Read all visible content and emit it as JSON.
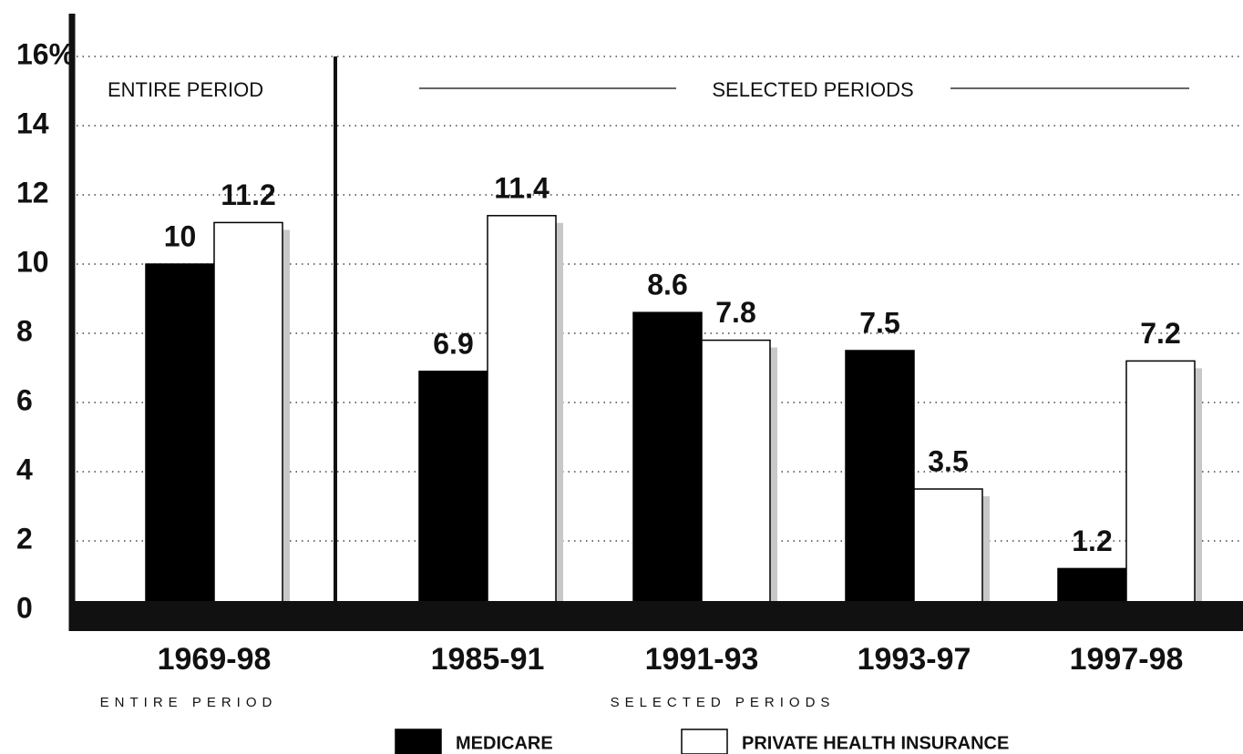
{
  "chart_data": {
    "type": "bar",
    "categories": [
      "1969-98",
      "1985-91",
      "1991-93",
      "1993-97",
      "1997-98"
    ],
    "series": [
      {
        "name": "MEDICARE",
        "color": "#000000",
        "values": [
          10,
          6.9,
          8.6,
          7.5,
          1.2
        ]
      },
      {
        "name": "PRIVATE HEALTH INSURANCE",
        "color": "#ffffff",
        "values": [
          11.2,
          11.4,
          7.8,
          3.5,
          7.2
        ]
      }
    ],
    "annotations": [
      "ENTIRE PERIOD",
      "SELECTED PERIODS"
    ],
    "ylim": [
      0,
      16
    ],
    "yticks": [
      0,
      2,
      4,
      6,
      8,
      10,
      12,
      14,
      {
        "value": 16,
        "label": "16%"
      }
    ],
    "grid": true,
    "legend": "bottom"
  }
}
